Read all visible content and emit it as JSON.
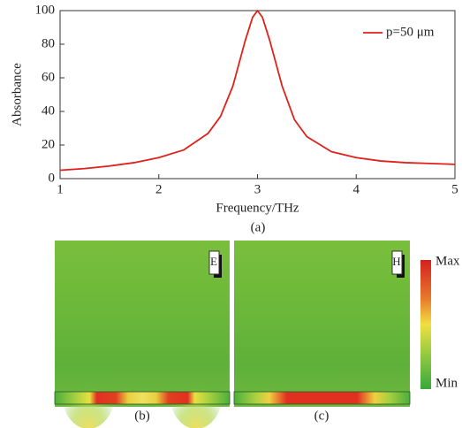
{
  "chart_data": {
    "type": "line",
    "x_label": "Frequency/THz",
    "y_label": "Absorbance",
    "xlim": [
      1,
      5
    ],
    "ylim": [
      0,
      100
    ],
    "xticks": [
      1,
      2,
      3,
      4,
      5
    ],
    "yticks": [
      0,
      20,
      40,
      60,
      80,
      100
    ],
    "legend": "upper right",
    "x": [
      1,
      1.25,
      1.5,
      1.75,
      2,
      2.25,
      2.5,
      2.625,
      2.75,
      2.875,
      2.95,
      3,
      3.05,
      3.125,
      3.25,
      3.375,
      3.5,
      3.75,
      4,
      4.25,
      4.5,
      4.75,
      5
    ],
    "series": [
      {
        "name": "p=50 μm",
        "color": "#e0201b",
        "values": [
          5,
          6,
          7.5,
          9.5,
          12.5,
          17,
          27,
          37,
          55,
          82,
          96,
          100,
          96,
          82,
          55,
          35,
          25,
          16,
          12.5,
          10.5,
          9.5,
          9,
          8.5
        ]
      }
    ]
  },
  "caption": "(a)",
  "field_maps": [
    {
      "label": "E",
      "caption": "(b)"
    },
    {
      "label": "H",
      "caption": "(c)"
    }
  ],
  "colorbar": {
    "max": "Max",
    "min": "Min"
  }
}
